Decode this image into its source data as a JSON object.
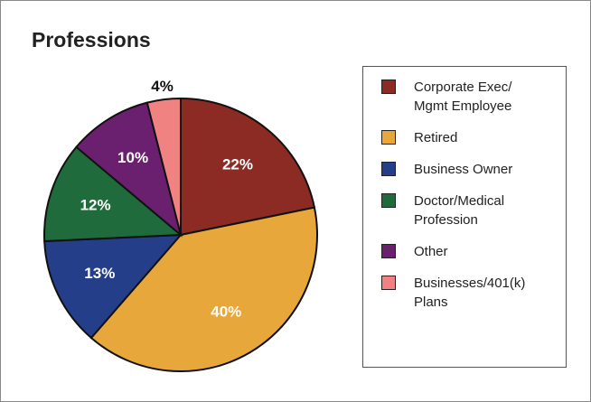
{
  "chart_data": {
    "type": "pie",
    "title": "Professions",
    "categories": [
      "Corporate Exec/ Mgmt Employee",
      "Retired",
      "Business Owner",
      "Doctor/Medical Profession",
      "Other",
      "Businesses/401(k) Plans"
    ],
    "values": [
      22,
      40,
      13,
      12,
      10,
      4
    ],
    "value_labels": [
      "22%",
      "40%",
      "13%",
      "12%",
      "10%",
      "4%"
    ],
    "colors": [
      "#8b2b24",
      "#e8a73a",
      "#243e8a",
      "#1f6b3b",
      "#6b206f",
      "#f08282"
    ],
    "legend": "right"
  }
}
